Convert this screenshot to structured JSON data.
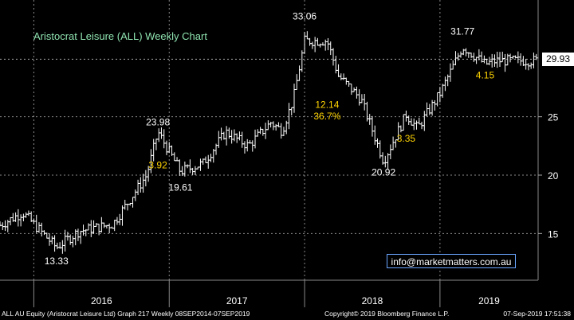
{
  "chart_data": {
    "type": "ohlc",
    "title": "Aristocrat Leisure (ALL) Weekly Chart",
    "ylim": [
      11,
      35
    ],
    "yticks": [
      15,
      20,
      25
    ],
    "x_period_labels": [
      "2016",
      "2017",
      "2018",
      "2019"
    ],
    "last_price": "29.93",
    "grid": true,
    "colors": {
      "bars": "#ffffff",
      "grid": "#8a8a8a",
      "title": "#8fe3b0",
      "annotation": "#ffd400",
      "price_label": "#ffffff"
    },
    "annotations": [
      {
        "text": "13.33",
        "kind": "price",
        "x": "2016-03",
        "y": 13.33
      },
      {
        "text": "23.98",
        "kind": "price",
        "x": "2016-12",
        "y": 23.98
      },
      {
        "text": "3.92",
        "kind": "move",
        "x": "2016-12",
        "y": 20.3
      },
      {
        "text": "19.61",
        "kind": "price",
        "x": "2017-02",
        "y": 19.61
      },
      {
        "text": "33.06",
        "kind": "price",
        "x": "2018-01",
        "y": 33.06
      },
      {
        "text": "12.14",
        "kind": "move",
        "x": "2018-03",
        "y": 25.5
      },
      {
        "text": "36.7%",
        "kind": "move",
        "x": "2018-03",
        "y": 24.5
      },
      {
        "text": "20.92",
        "kind": "price",
        "x": "2018-08",
        "y": 20.92
      },
      {
        "text": "3.35",
        "kind": "move",
        "x": "2018-10",
        "y": 22.6
      },
      {
        "text": "31.77",
        "kind": "price",
        "x": "2019-03",
        "y": 31.77
      },
      {
        "text": "4.15",
        "kind": "move",
        "x": "2019-05",
        "y": 28.0
      }
    ],
    "anchors": [
      [
        "2015-10",
        15.7
      ],
      [
        "2015-12",
        16.8
      ],
      [
        "2016-03",
        13.8
      ],
      [
        "2016-05",
        15.2
      ],
      [
        "2016-08",
        15.8
      ],
      [
        "2016-11",
        20.0
      ],
      [
        "2016-12",
        23.7
      ],
      [
        "2017-02",
        20.3
      ],
      [
        "2017-04",
        21.0
      ],
      [
        "2017-06",
        23.7
      ],
      [
        "2017-08",
        22.5
      ],
      [
        "2017-10",
        24.5
      ],
      [
        "2017-11",
        23.8
      ],
      [
        "2017-12",
        26.5
      ],
      [
        "2018-01",
        31.5
      ],
      [
        "2018-03",
        31.5
      ],
      [
        "2018-04",
        28.5
      ],
      [
        "2018-06",
        26.5
      ],
      [
        "2018-08",
        21.2
      ],
      [
        "2018-10",
        25.2
      ],
      [
        "2018-11",
        24.0
      ],
      [
        "2019-01",
        27.0
      ],
      [
        "2019-03",
        31.0
      ],
      [
        "2019-05",
        29.5
      ],
      [
        "2019-06",
        29.8
      ]
    ]
  },
  "email": "info@marketmatters.com.au",
  "footer": {
    "left": "ALL AU Equity (Aristocrat Leisure Ltd) Graph 217  Weekly 08SEP2014-07SEP2019",
    "center": "Copyright© 2019 Bloomberg Finance L.P.",
    "right": "07-Sep-2019 17:51:38"
  }
}
